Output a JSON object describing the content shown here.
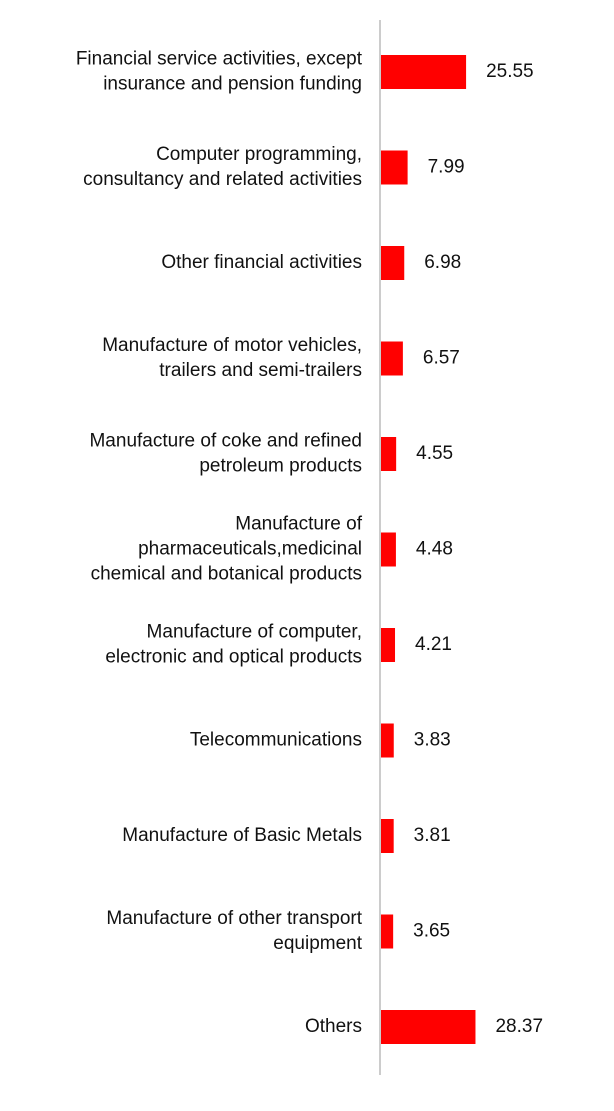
{
  "chart_data": {
    "type": "bar",
    "orientation": "horizontal",
    "color": "#ff0000",
    "categories": [
      "Financial service activities, except\ninsurance and pension funding",
      "Computer programming,\nconsultancy and related activities",
      "Other financial activities",
      "Manufacture of motor vehicles,\ntrailers and semi-trailers",
      "Manufacture of coke and refined\npetroleum products",
      "Manufacture of\npharmaceuticals,medicinal\nchemical and botanical products",
      "Manufacture of computer,\nelectronic and optical products",
      "Telecommunications",
      "Manufacture of Basic Metals",
      "Manufacture of other transport\nequipment",
      "Others"
    ],
    "values": [
      25.55,
      7.99,
      6.98,
      6.57,
      4.55,
      4.48,
      4.21,
      3.83,
      3.81,
      3.65,
      28.37
    ]
  }
}
